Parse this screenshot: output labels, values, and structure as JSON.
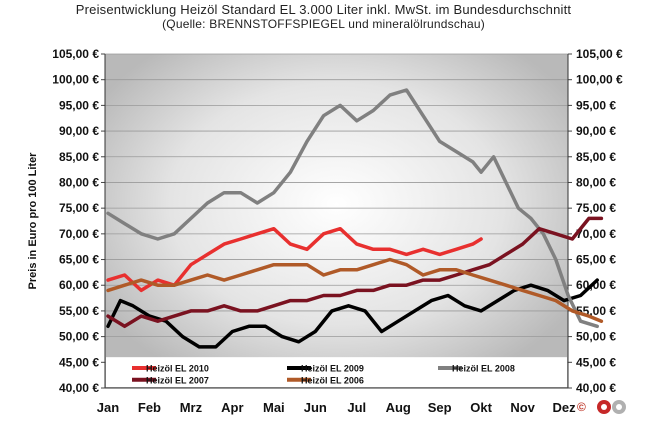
{
  "header": {
    "title": "Preisentwicklung Heizöl Standard EL 3.000 Liter inkl. MwSt. im Bundesdurchschnitt",
    "subtitle": "(Quelle: BRENNSTOFFSPIEGEL und mineralölrundschau)"
  },
  "copyright": "©",
  "chart_data": {
    "type": "line",
    "ylabel": "Preis in Euro pro 100 Liter",
    "ylim": [
      40,
      105
    ],
    "ytick_step": 5,
    "ytick_labels": [
      "105,00 €",
      "100,00 €",
      "95,00 €",
      "90,00 €",
      "85,00 €",
      "80,00 €",
      "75,00 €",
      "70,00 €",
      "65,00 €",
      "60,00 €",
      "55,00 €",
      "50,00 €",
      "45,00 €",
      "40,00 €"
    ],
    "categories": [
      "Jan",
      "Feb",
      "Mrz",
      "Apr",
      "Mai",
      "Jun",
      "Jul",
      "Aug",
      "Sep",
      "Okt",
      "Nov",
      "Dez"
    ],
    "grid": true,
    "legend": "bottom",
    "series": [
      {
        "name": "Heizöl EL 2010",
        "color": "#e8302f",
        "x": [
          0,
          0.4,
          0.8,
          1.2,
          1.6,
          2.0,
          2.4,
          2.8,
          3.2,
          3.6,
          4.0,
          4.4,
          4.8,
          5.2,
          5.6,
          6.0,
          6.4,
          6.8,
          7.2,
          7.6,
          8.0,
          8.4,
          8.8,
          9.0
        ],
        "values": [
          61,
          62,
          59,
          61,
          60,
          64,
          66,
          68,
          69,
          70,
          71,
          68,
          67,
          70,
          71,
          68,
          67,
          67,
          66,
          67,
          66,
          67,
          68,
          69
        ]
      },
      {
        "name": "Heizöl EL 2009",
        "color": "#000000",
        "x": [
          0,
          0.3,
          0.6,
          1.0,
          1.4,
          1.8,
          2.2,
          2.6,
          3.0,
          3.4,
          3.8,
          4.2,
          4.6,
          5.0,
          5.4,
          5.8,
          6.2,
          6.6,
          7.0,
          7.4,
          7.8,
          8.2,
          8.6,
          9.0,
          9.4,
          9.8,
          10.2,
          10.6,
          11.0,
          11.4,
          11.8
        ],
        "values": [
          52,
          57,
          56,
          54,
          53,
          50,
          48,
          48,
          51,
          52,
          52,
          50,
          49,
          51,
          55,
          56,
          55,
          51,
          53,
          55,
          57,
          58,
          56,
          55,
          57,
          59,
          60,
          59,
          57,
          58,
          61
        ]
      },
      {
        "name": "Heizöl EL 2008",
        "color": "#808080",
        "x": [
          0,
          0.4,
          0.8,
          1.2,
          1.6,
          2.0,
          2.4,
          2.8,
          3.2,
          3.6,
          4.0,
          4.4,
          4.8,
          5.2,
          5.6,
          6.0,
          6.4,
          6.8,
          7.2,
          7.6,
          8.0,
          8.4,
          8.8,
          9.0,
          9.3,
          9.6,
          9.9,
          10.2,
          10.5,
          10.8,
          11.1,
          11.4,
          11.8
        ],
        "values": [
          74,
          72,
          70,
          69,
          70,
          73,
          76,
          78,
          78,
          76,
          78,
          82,
          88,
          93,
          95,
          92,
          94,
          97,
          98,
          93,
          88,
          86,
          84,
          82,
          85,
          80,
          75,
          73,
          70,
          65,
          58,
          53,
          52
        ]
      },
      {
        "name": "Heizöl EL 2007",
        "color": "#7a1220",
        "x": [
          0,
          0.4,
          0.8,
          1.2,
          1.6,
          2.0,
          2.4,
          2.8,
          3.2,
          3.6,
          4.0,
          4.4,
          4.8,
          5.2,
          5.6,
          6.0,
          6.4,
          6.8,
          7.2,
          7.6,
          8.0,
          8.4,
          8.8,
          9.2,
          9.6,
          10.0,
          10.4,
          10.8,
          11.2,
          11.6,
          11.9
        ],
        "values": [
          54,
          52,
          54,
          53,
          54,
          55,
          55,
          56,
          55,
          55,
          56,
          57,
          57,
          58,
          58,
          59,
          59,
          60,
          60,
          61,
          61,
          62,
          63,
          64,
          66,
          68,
          71,
          70,
          69,
          73,
          73
        ]
      },
      {
        "name": "Heizöl EL 2006",
        "color": "#b05a28",
        "x": [
          0,
          0.4,
          0.8,
          1.2,
          1.6,
          2.0,
          2.4,
          2.8,
          3.2,
          3.6,
          4.0,
          4.4,
          4.8,
          5.2,
          5.6,
          6.0,
          6.4,
          6.8,
          7.2,
          7.6,
          8.0,
          8.4,
          8.8,
          9.2,
          9.6,
          10.0,
          10.4,
          10.8,
          11.2,
          11.6,
          11.9
        ],
        "values": [
          59,
          60,
          61,
          60,
          60,
          61,
          62,
          61,
          62,
          63,
          64,
          64,
          64,
          62,
          63,
          63,
          64,
          65,
          64,
          62,
          63,
          63,
          62,
          61,
          60,
          59,
          58,
          57,
          55,
          54,
          53
        ]
      }
    ]
  }
}
